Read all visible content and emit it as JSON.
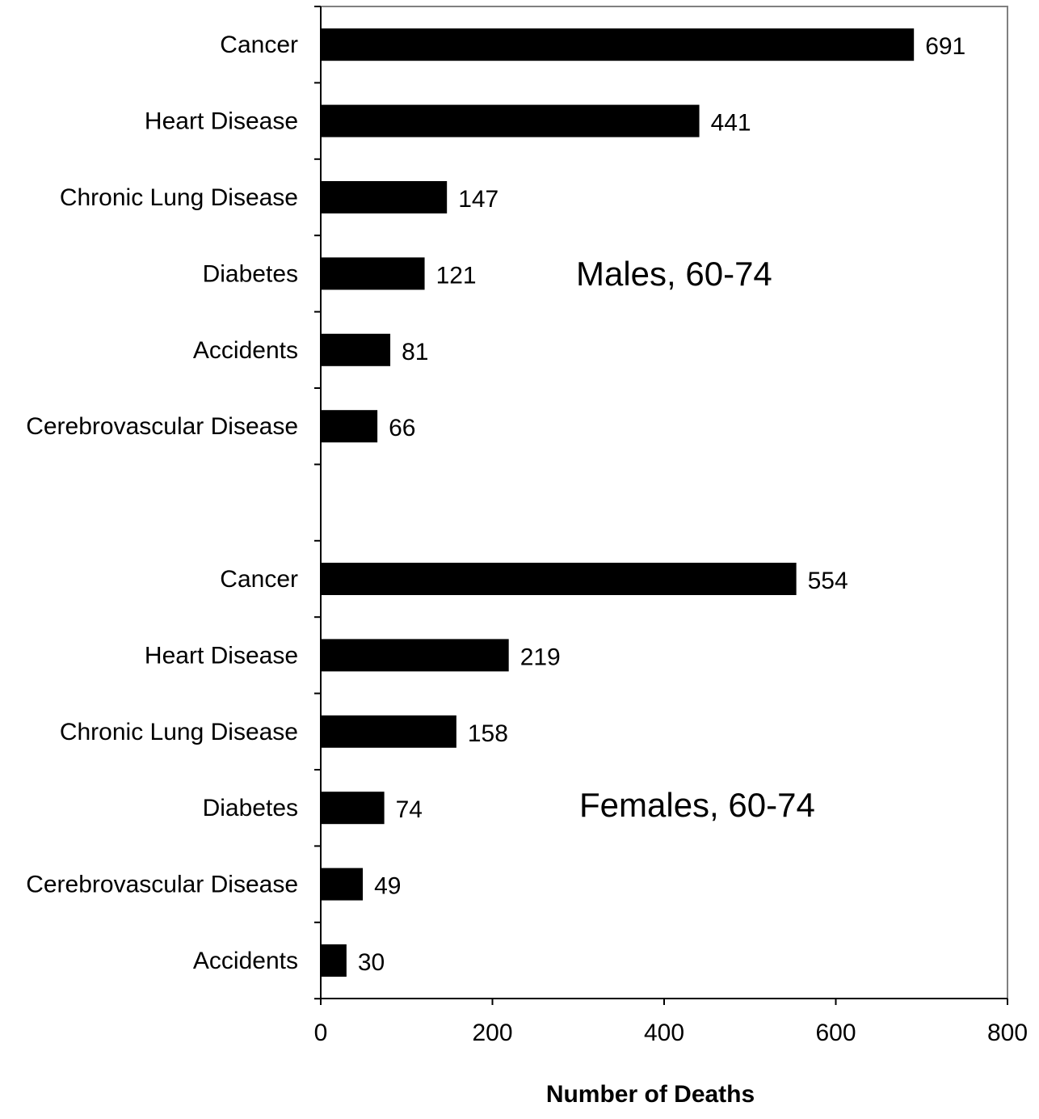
{
  "chart_data": {
    "type": "bar",
    "orientation": "horizontal",
    "title": "",
    "xlabel": "Number of Deaths",
    "ylabel": "",
    "xlim": [
      0,
      800
    ],
    "x_ticks": [
      0,
      200,
      400,
      600,
      800
    ],
    "grid": false,
    "bar_color": "#000000",
    "groups": [
      {
        "label": "Males, 60-74",
        "categories": [
          "Cancer",
          "Heart Disease",
          "Chronic Lung Disease",
          "Diabetes",
          "Accidents",
          "Cerebrovascular Disease"
        ],
        "values": [
          691,
          441,
          147,
          121,
          81,
          66
        ]
      },
      {
        "label": "Females, 60-74",
        "categories": [
          "Cancer",
          "Heart Disease",
          "Chronic Lung Disease",
          "Diabetes",
          "Cerebrovascular Disease",
          "Accidents"
        ],
        "values": [
          554,
          219,
          158,
          74,
          49,
          30
        ]
      }
    ]
  }
}
